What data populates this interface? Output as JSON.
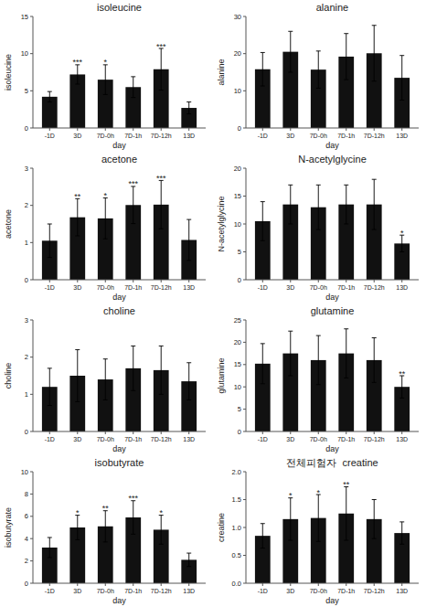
{
  "chart_data": [
    {
      "type": "bar",
      "title": "isoleucine",
      "ylabel": "isoleucine",
      "xlabel": "day",
      "categories": [
        "-1D",
        "3D",
        "7D-0h",
        "7D-1h",
        "7D-12h",
        "13D"
      ],
      "values": [
        4.2,
        7.2,
        6.5,
        5.5,
        7.9,
        2.7
      ],
      "errors": [
        0.7,
        1.3,
        2.0,
        1.4,
        2.8,
        0.8
      ],
      "annotations": [
        null,
        "***",
        "*",
        null,
        "***",
        null
      ],
      "color": "#111111",
      "ylim": [
        0,
        15
      ],
      "yticks": [
        0,
        5,
        10,
        15
      ],
      "grid": false
    },
    {
      "type": "bar",
      "title": "alanine",
      "ylabel": "alanine",
      "xlabel": "day",
      "categories": [
        "-1D",
        "3D",
        "7D-0h",
        "7D-1h",
        "7D-12h",
        "13D"
      ],
      "values": [
        15.8,
        20.5,
        15.7,
        19.2,
        20.1,
        13.5
      ],
      "errors": [
        4.5,
        5.5,
        5.0,
        6.2,
        7.5,
        6.0
      ],
      "annotations": [
        null,
        null,
        null,
        null,
        null,
        null
      ],
      "color": "#111111",
      "ylim": [
        0,
        30
      ],
      "yticks": [
        0,
        10,
        20,
        30
      ],
      "grid": false
    },
    {
      "type": "bar",
      "title": "acetone",
      "ylabel": "acetone",
      "xlabel": "day",
      "categories": [
        "-1D",
        "3D",
        "7D-0h",
        "7D-1h",
        "7D-12h",
        "13D"
      ],
      "values": [
        1.05,
        1.68,
        1.65,
        2.01,
        2.02,
        1.07
      ],
      "errors": [
        0.45,
        0.5,
        0.55,
        0.5,
        0.65,
        0.55
      ],
      "annotations": [
        null,
        "**",
        "*",
        "***",
        "***",
        null
      ],
      "color": "#111111",
      "ylim": [
        0,
        3
      ],
      "yticks": [
        0,
        1,
        2,
        3
      ],
      "grid": false
    },
    {
      "type": "bar",
      "title": "N-acetylglycine",
      "ylabel": "N-acetylglycine",
      "xlabel": "day",
      "categories": [
        "-1D",
        "3D",
        "7D-0h",
        "7D-1h",
        "7D-12h",
        "13D"
      ],
      "values": [
        10.5,
        13.5,
        13.0,
        13.5,
        13.5,
        6.5
      ],
      "errors": [
        3.5,
        3.5,
        4.0,
        3.5,
        4.5,
        1.5
      ],
      "annotations": [
        null,
        null,
        null,
        null,
        null,
        "*"
      ],
      "color": "#111111",
      "ylim": [
        0,
        20
      ],
      "yticks": [
        0,
        5,
        10,
        15,
        20
      ],
      "grid": false
    },
    {
      "type": "bar",
      "title": "choline",
      "ylabel": "choline",
      "xlabel": "day",
      "categories": [
        "-1D",
        "3D",
        "7D-0h",
        "7D-1h",
        "7D-12h",
        "13D"
      ],
      "values": [
        1.2,
        1.5,
        1.4,
        1.7,
        1.65,
        1.35
      ],
      "errors": [
        0.5,
        0.7,
        0.55,
        0.6,
        0.65,
        0.5
      ],
      "annotations": [
        null,
        null,
        null,
        null,
        null,
        null
      ],
      "color": "#111111",
      "ylim": [
        0,
        3
      ],
      "yticks": [
        0,
        1,
        2,
        3
      ],
      "grid": false
    },
    {
      "type": "bar",
      "title": "glutamine",
      "ylabel": "glutamine",
      "xlabel": "day",
      "categories": [
        "-1D",
        "3D",
        "7D-0h",
        "7D-1h",
        "7D-12h",
        "13D"
      ],
      "values": [
        15.2,
        17.5,
        16.0,
        17.5,
        16.0,
        10.0
      ],
      "errors": [
        4.5,
        5.0,
        5.5,
        5.5,
        5.0,
        2.5
      ],
      "annotations": [
        null,
        null,
        null,
        null,
        null,
        "**"
      ],
      "color": "#111111",
      "ylim": [
        0,
        25
      ],
      "yticks": [
        0,
        5,
        10,
        15,
        20,
        25
      ],
      "grid": false
    },
    {
      "type": "bar",
      "title": "isobutyrate",
      "ylabel": "isobutyrate",
      "xlabel": "day",
      "categories": [
        "-1D",
        "3D",
        "7D-0h",
        "7D-1h",
        "7D-12h",
        "13D"
      ],
      "values": [
        3.2,
        5.0,
        5.1,
        5.9,
        4.8,
        2.1
      ],
      "errors": [
        0.9,
        1.1,
        1.4,
        1.5,
        1.3,
        0.6
      ],
      "annotations": [
        null,
        "*",
        "**",
        "***",
        "*",
        null
      ],
      "color": "#111111",
      "ylim": [
        0,
        10
      ],
      "yticks": [
        0,
        2,
        4,
        6,
        8,
        10
      ],
      "grid": false
    },
    {
      "type": "bar",
      "title": "전체피험자  creatine",
      "ylabel": "creatine",
      "xlabel": "day",
      "categories": [
        "-1D",
        "3D",
        "7D-0h",
        "7D-1h",
        "7D-12h",
        "13D"
      ],
      "values": [
        0.85,
        1.15,
        1.17,
        1.25,
        1.15,
        0.9
      ],
      "errors": [
        0.22,
        0.38,
        0.42,
        0.48,
        0.35,
        0.2
      ],
      "annotations": [
        null,
        "*",
        "*",
        "**",
        null,
        null
      ],
      "color": "#111111",
      "ylim": [
        0,
        2
      ],
      "yticks": [
        {
          "value": 0,
          "label": "0.0"
        },
        0.5,
        {
          "value": 1,
          "label": "1.0"
        },
        1.5,
        {
          "value": 2,
          "label": "2.0"
        }
      ],
      "grid": false
    }
  ]
}
